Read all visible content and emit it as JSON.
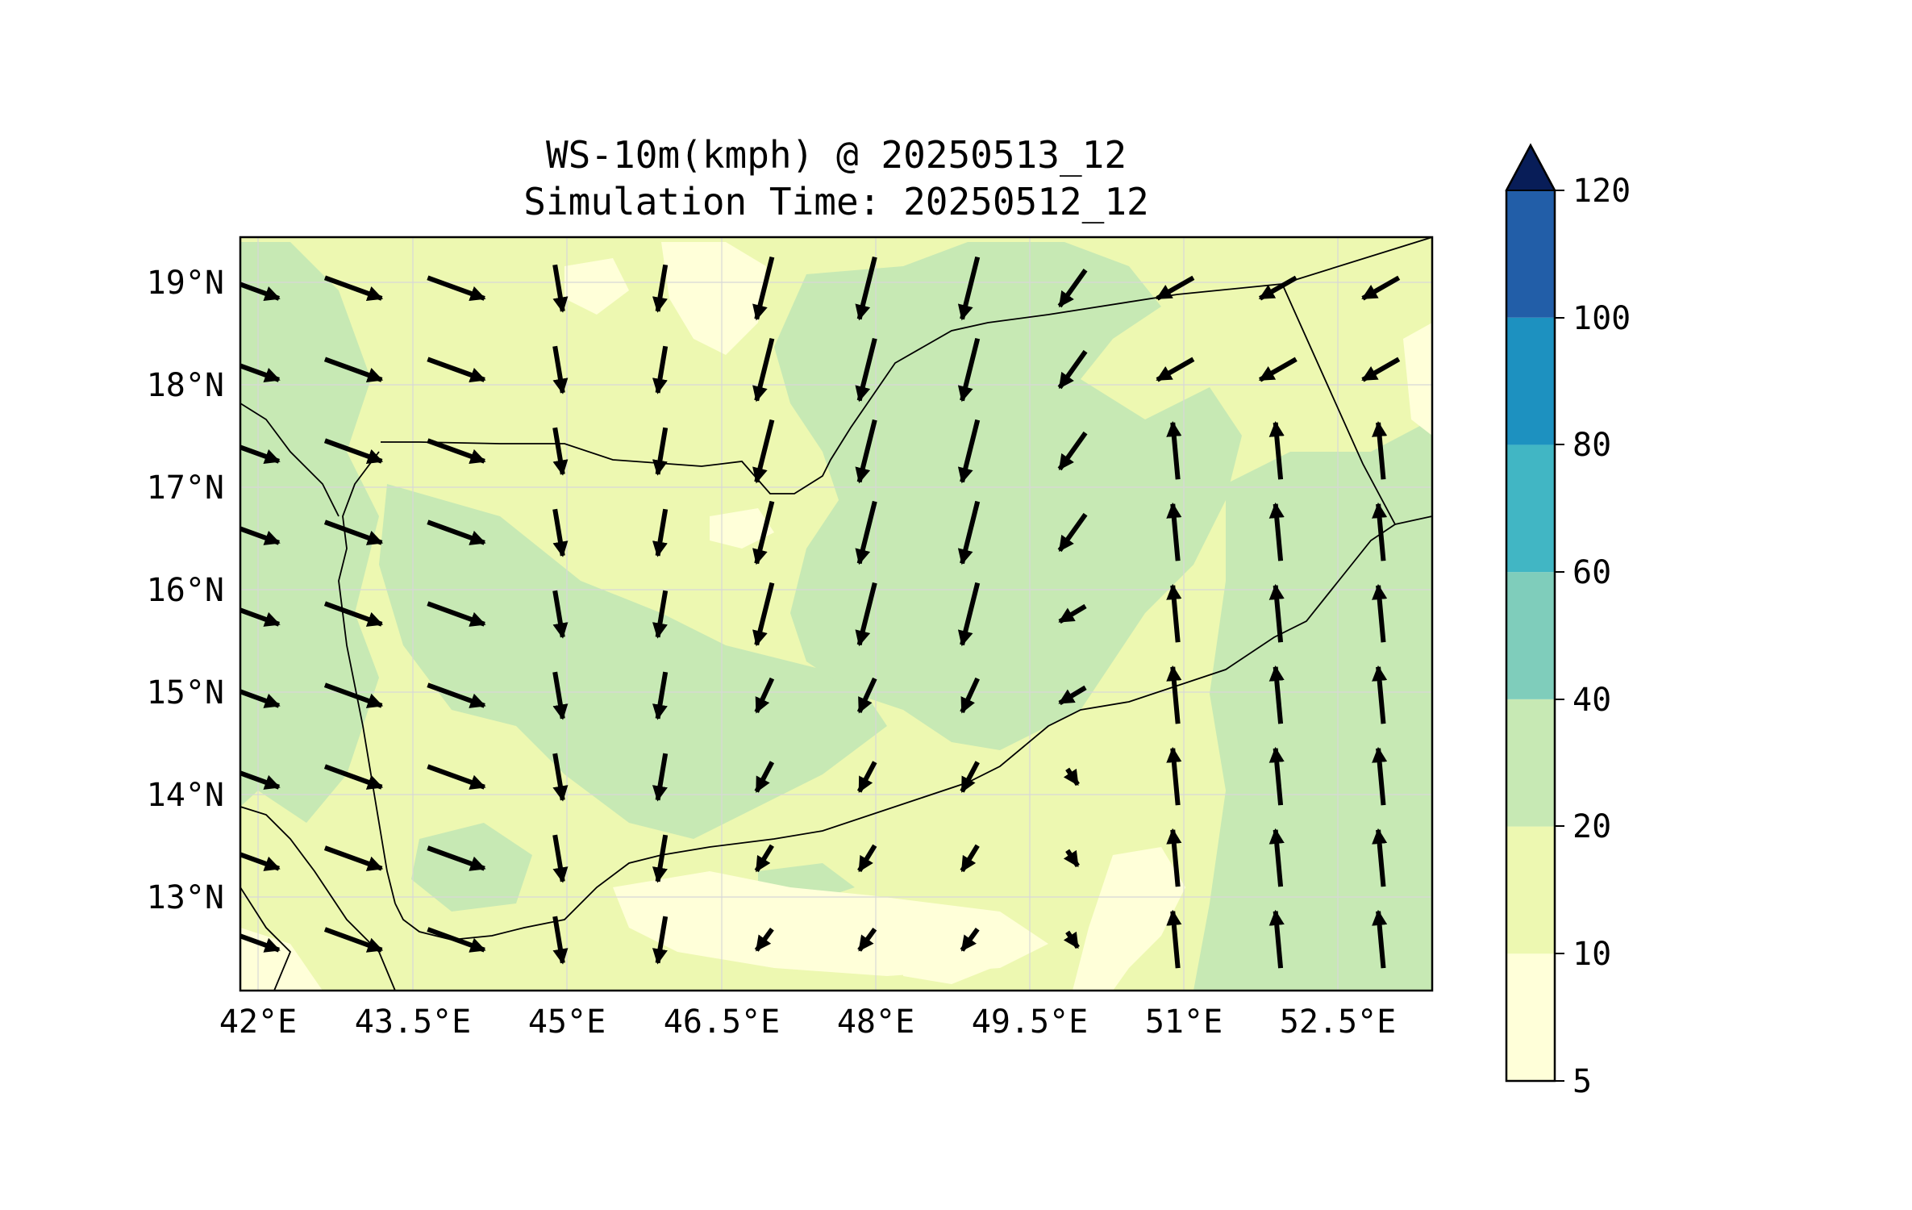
{
  "title": {
    "line1": "WS-10m(kmph) @ 20250513_12",
    "line2": "Simulation Time: 20250512_12"
  },
  "map": {
    "extent": {
      "lon": [
        41.9,
        53.5
      ],
      "lat": [
        12.1,
        19.5
      ]
    },
    "x_ticks": [
      "42°E",
      "43.5°E",
      "45°E",
      "46.5°E",
      "48°E",
      "49.5°E",
      "51°E",
      "52.5°E"
    ],
    "y_ticks": [
      "19°N",
      "18°N",
      "17°N",
      "16°N",
      "15°N",
      "14°N",
      "13°N"
    ],
    "gridlines": true,
    "field_colors": {
      "5-10": "#ffffd9",
      "10-20": "#edf8b1",
      "20-40": "#c7e9b4"
    }
  },
  "colorbar": {
    "ticks": [
      "5",
      "10",
      "20",
      "40",
      "60",
      "80",
      "100",
      "120"
    ],
    "levels": [
      5,
      10,
      20,
      40,
      60,
      80,
      100,
      120
    ],
    "colors": [
      "#ffffd9",
      "#edf8b1",
      "#c7e9b4",
      "#7fcdbb",
      "#41b6c4",
      "#1d91c0",
      "#225ea8",
      "#0c2c84"
    ],
    "extend": "max"
  },
  "chart_data": {
    "type": "quiver-map",
    "variable": "WS-10m(kmph)",
    "vector_grid": {
      "lons": [
        42.0,
        43.0,
        44.0,
        45.0,
        46.0,
        47.0,
        48.0,
        49.0,
        50.0,
        51.0,
        52.0,
        53.0
      ],
      "lats": [
        19.0,
        18.2,
        17.4,
        16.6,
        15.8,
        15.0,
        14.2,
        13.4,
        12.6
      ],
      "note_units": "u,v in kmph"
    }
  }
}
